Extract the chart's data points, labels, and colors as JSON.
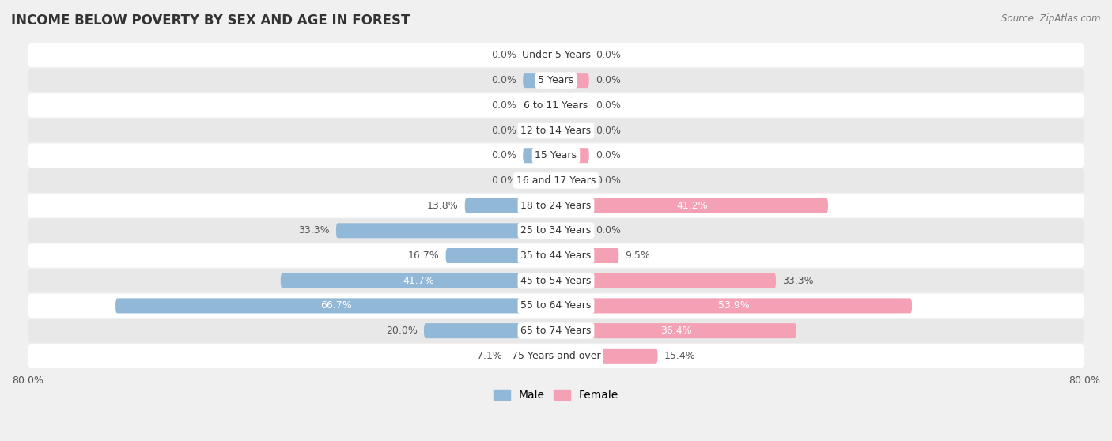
{
  "title": "INCOME BELOW POVERTY BY SEX AND AGE IN FOREST",
  "source": "Source: ZipAtlas.com",
  "categories": [
    "Under 5 Years",
    "5 Years",
    "6 to 11 Years",
    "12 to 14 Years",
    "15 Years",
    "16 and 17 Years",
    "18 to 24 Years",
    "25 to 34 Years",
    "35 to 44 Years",
    "45 to 54 Years",
    "55 to 64 Years",
    "65 to 74 Years",
    "75 Years and over"
  ],
  "male_values": [
    0.0,
    0.0,
    0.0,
    0.0,
    0.0,
    0.0,
    13.8,
    33.3,
    16.7,
    41.7,
    66.7,
    20.0,
    7.1
  ],
  "female_values": [
    0.0,
    0.0,
    0.0,
    0.0,
    0.0,
    0.0,
    41.2,
    0.0,
    9.5,
    33.3,
    53.9,
    36.4,
    15.4
  ],
  "male_color": "#92b8d8",
  "female_color": "#f4a0b5",
  "male_label": "Male",
  "female_label": "Female",
  "xlim": 80.0,
  "min_bar_val": 5.0,
  "bar_height": 0.6,
  "background_color": "#f0f0f0",
  "row_bg_white": "#ffffff",
  "row_bg_gray": "#e8e8e8",
  "title_fontsize": 12,
  "source_fontsize": 8.5,
  "label_fontsize": 9,
  "cat_fontsize": 9,
  "axis_label_fontsize": 9,
  "inside_label_threshold": 35.0
}
